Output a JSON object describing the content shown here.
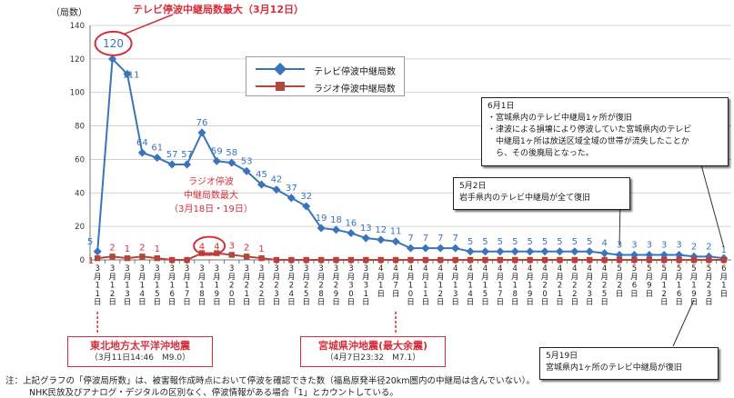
{
  "chart_data": {
    "type": "line",
    "ylabel": "（局数）",
    "ylim": [
      0,
      140
    ],
    "yticks": [
      0,
      20,
      40,
      60,
      80,
      100,
      120,
      140
    ],
    "categories": [
      "3月11日",
      "3月12日",
      "3月13日",
      "3月14日",
      "3月15日",
      "3月16日",
      "3月17日",
      "3月18日",
      "3月19日",
      "3月20日",
      "3月21日",
      "3月22日",
      "3月23日",
      "3月24日",
      "3月25日",
      "3月28日",
      "3月29日",
      "3月30日",
      "3月31日",
      "4月1日",
      "4月7日",
      "4月10日",
      "4月11日",
      "4月12日",
      "4月13日",
      "4月14日",
      "4月15日",
      "4月17日",
      "4月18日",
      "4月19日",
      "4月20日",
      "4月21日",
      "4月22日",
      "4月23日",
      "4月25日",
      "5月2日",
      "5月6日",
      "5月9日",
      "5月12日",
      "5月16日",
      "5月19日",
      "5月23日",
      "6月1日"
    ],
    "series": [
      {
        "name": "テレビ停波中継局数",
        "color": "#3b74b9",
        "values": [
          5,
          120,
          111,
          64,
          61,
          57,
          57,
          76,
          59,
          58,
          53,
          45,
          42,
          37,
          32,
          19,
          18,
          16,
          13,
          12,
          11,
          7,
          7,
          7,
          7,
          5,
          5,
          5,
          5,
          5,
          5,
          5,
          5,
          5,
          4,
          3,
          3,
          3,
          3,
          3,
          2,
          2,
          1
        ]
      },
      {
        "name": "ラジオ停波中継局数",
        "color": "#b0483c",
        "values": [
          1,
          2,
          1,
          2,
          1,
          0,
          0,
          4,
          4,
          3,
          2,
          1,
          0,
          0,
          0,
          0,
          0,
          0,
          0,
          0,
          0,
          0,
          0,
          0,
          0,
          0,
          0,
          0,
          0,
          0,
          0,
          0,
          0,
          0,
          0,
          0,
          0,
          0,
          0,
          0,
          0,
          0,
          0
        ]
      }
    ],
    "annotations": {
      "tv_max": "テレビ停波中継局数最大（3月12日）",
      "radio_max_line1": "ラジオ停波",
      "radio_max_line2": "中継局数最大",
      "radio_max_line3": "（3月18日・19日）"
    }
  },
  "notes": {
    "june1": {
      "line1": "6月1日",
      "line2": "・宮城県内のテレビ中継局1ヶ所が復旧",
      "line3": "・津波による損壊により停波していた宮城県内のテレビ",
      "line4": "中継局1ヶ所は放送区域全域の世帯が流失したことか",
      "line5": "ら、その後廃局となった。"
    },
    "may2": {
      "line1": "5月2日",
      "line2": "岩手県内のテレビ中継局が全て復旧"
    },
    "may19": {
      "line1": "5月19日",
      "line2": "宮城県内1ヶ所のテレビ中継局が復旧"
    }
  },
  "quakes": {
    "first": {
      "title": "東北地方太平洋沖地震",
      "sub": "（3月11日14:46　M9.0）"
    },
    "second": {
      "title": "宮城県沖地震(最大余震)",
      "sub": "（4月7日23:32　M7.1）"
    }
  },
  "footnote": {
    "line1": "注：上記グラフの「停波局所数」は、被害報作成時点において停波を確認できた数（福島原発半径20km圏内の中継局は含んでいない）。",
    "line2": "NHK民放及びアナログ・デジタルの区別なく、停波情報がある場合「1」とカウントしている。"
  },
  "colors": {
    "tv": "#3b74b9",
    "radio": "#b0483c",
    "highlight": "#d32f3a",
    "grid": "#c8c8c8"
  }
}
